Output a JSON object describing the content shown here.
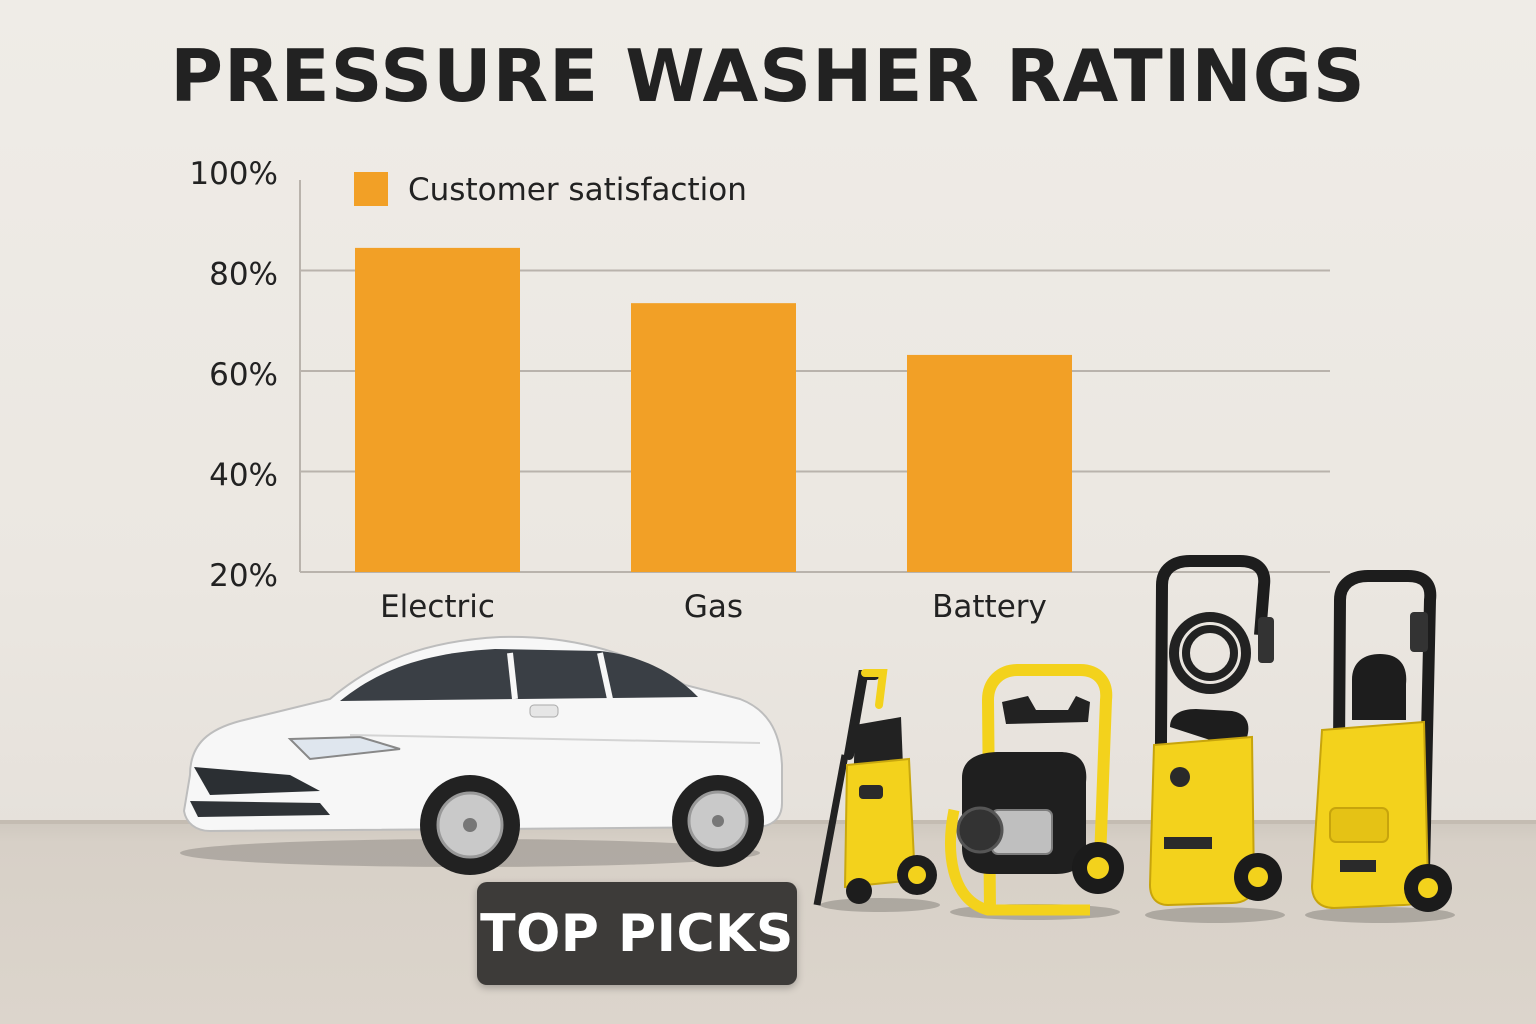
{
  "title": "PRESSURE WASHER RATINGS",
  "badge": {
    "label": "TOP PICKS"
  },
  "colors": {
    "bar": "#f2a026",
    "axis": "#b9b3ac",
    "text": "#222222",
    "washer_yellow": "#f3d21c"
  },
  "props": {
    "car": "white-sedan",
    "washers": [
      "electric-pressure-washer",
      "gas-pressure-washer",
      "upright-pressure-washer-with-hose-reel",
      "upright-pressure-washer"
    ]
  },
  "chart_data": {
    "type": "bar",
    "categories": [
      "Electric",
      "Gas",
      "Battery"
    ],
    "series": [
      {
        "name": "Customer satisfaction",
        "values": [
          84.5,
          73.5,
          63.2
        ]
      }
    ],
    "ylim": [
      20,
      100
    ],
    "yticks": [
      "100%",
      "80%",
      "60%",
      "40%",
      "20%"
    ],
    "ytick_values": [
      100,
      80,
      60,
      40,
      20
    ],
    "grid": true,
    "legend": "top-left"
  }
}
